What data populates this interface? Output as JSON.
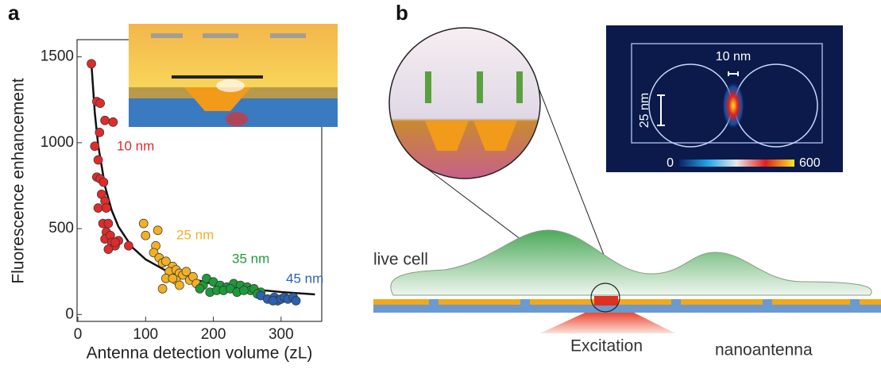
{
  "panel_labels": [
    "a",
    "b"
  ],
  "chart_data": {
    "type": "scatter",
    "xlabel": "Antenna detection volume (zL)",
    "ylabel": "Fluorescence enhancement",
    "xlim": [
      0,
      360
    ],
    "xticks": [
      0,
      100,
      200,
      300
    ],
    "ylim": [
      -40,
      1600
    ],
    "yticks": [
      0,
      500,
      1000,
      1500
    ],
    "series": [
      {
        "name": "10 nm",
        "color": "#e02b2b",
        "x": [
          20,
          28,
          33,
          40,
          52,
          25,
          32,
          30,
          28,
          33,
          38,
          35,
          40,
          30,
          42,
          37,
          42,
          45,
          40,
          48,
          50,
          55,
          60,
          75,
          45,
          55
        ],
        "values": [
          1460,
          1240,
          1230,
          1130,
          1120,
          980,
          1060,
          900,
          800,
          790,
          770,
          700,
          660,
          620,
          620,
          530,
          480,
          530,
          440,
          460,
          420,
          400,
          430,
          400,
          380,
          420
        ]
      },
      {
        "name": "25 nm",
        "color": "#f2b024",
        "x": [
          97,
          100,
          118,
          115,
          112,
          120,
          125,
          130,
          140,
          135,
          145,
          150,
          155,
          160,
          165,
          145,
          130,
          170,
          175,
          125,
          150,
          140
        ],
        "values": [
          530,
          460,
          490,
          400,
          360,
          330,
          300,
          310,
          280,
          250,
          260,
          240,
          230,
          250,
          200,
          200,
          210,
          220,
          180,
          150,
          170,
          210
        ]
      },
      {
        "name": "35 nm",
        "color": "#1e9a3a",
        "x": [
          185,
          190,
          200,
          210,
          220,
          230,
          240,
          250,
          255,
          260,
          270,
          180,
          195,
          205,
          215,
          225,
          235,
          245,
          265
        ],
        "values": [
          170,
          210,
          190,
          170,
          160,
          180,
          170,
          160,
          140,
          150,
          130,
          150,
          130,
          140,
          140,
          150,
          130,
          140,
          120
        ]
      },
      {
        "name": "45 nm",
        "color": "#2a62b0",
        "x": [
          270,
          280,
          290,
          295,
          300,
          305,
          310,
          318,
          322,
          288
        ],
        "values": [
          110,
          90,
          100,
          80,
          90,
          100,
          90,
          100,
          80,
          80
        ]
      }
    ],
    "fit": {
      "color": "#111111",
      "x": [
        20,
        25,
        30,
        40,
        50,
        60,
        80,
        100,
        130,
        160,
        200,
        250,
        300,
        350
      ],
      "values": [
        1461,
        1176,
        986,
        748,
        606,
        511,
        392,
        321,
        255,
        214,
        178,
        150,
        131,
        117
      ]
    }
  },
  "diagram": {
    "gap_label": "10 nm",
    "diameter_label": "25 nm",
    "colorbar_min": 0,
    "colorbar_max": 600,
    "cell_label": "live cell",
    "antenna_label": "nanoantenna",
    "excitation_label": "Excitation"
  }
}
